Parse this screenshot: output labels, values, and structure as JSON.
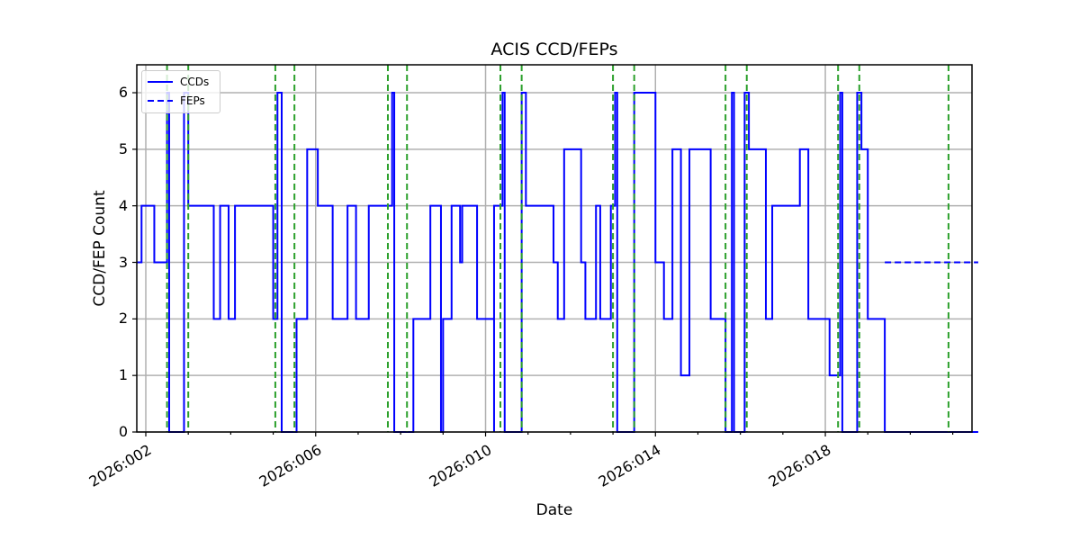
{
  "chart_data": {
    "type": "line",
    "title": "ACIS CCD/FEPs",
    "xlabel": "Date",
    "ylabel": "CCD/FEP Count",
    "ylim": [
      0,
      6.5
    ],
    "yticks": [
      "0",
      "1",
      "2",
      "3",
      "4",
      "5",
      "6"
    ],
    "xticks": [
      "2026:002",
      "2026:006",
      "2026:010",
      "2026:014",
      "2026:018"
    ],
    "xlim_days": [
      1.8,
      21.6
    ],
    "grid": true,
    "legend": {
      "position": "upper left",
      "entries": [
        "CCDs",
        "FEPs"
      ]
    },
    "series": [
      {
        "name": "CCDs",
        "style": "solid",
        "color": "#0000ff",
        "steps": [
          [
            1.8,
            3
          ],
          [
            1.9,
            4
          ],
          [
            2.2,
            3
          ],
          [
            2.5,
            6
          ],
          [
            2.55,
            0
          ],
          [
            2.9,
            6
          ],
          [
            3.0,
            4
          ],
          [
            3.6,
            2
          ],
          [
            3.75,
            4
          ],
          [
            3.95,
            2
          ],
          [
            4.1,
            4
          ],
          [
            5.0,
            2
          ],
          [
            5.1,
            6
          ],
          [
            5.2,
            0
          ],
          [
            5.55,
            2
          ],
          [
            5.8,
            5
          ],
          [
            6.05,
            4
          ],
          [
            6.4,
            2
          ],
          [
            6.75,
            4
          ],
          [
            6.95,
            2
          ],
          [
            7.25,
            4
          ],
          [
            7.8,
            6
          ],
          [
            7.85,
            0
          ],
          [
            8.3,
            2
          ],
          [
            8.7,
            4
          ],
          [
            8.95,
            0
          ],
          [
            9.0,
            2
          ],
          [
            9.2,
            4
          ],
          [
            9.4,
            3
          ],
          [
            9.45,
            4
          ],
          [
            9.8,
            2
          ],
          [
            10.2,
            0
          ],
          [
            10.2,
            4
          ],
          [
            10.4,
            6
          ],
          [
            10.45,
            0
          ],
          [
            10.85,
            6
          ],
          [
            10.95,
            4
          ],
          [
            11.6,
            3
          ],
          [
            11.7,
            2
          ],
          [
            11.85,
            5
          ],
          [
            12.25,
            3
          ],
          [
            12.35,
            2
          ],
          [
            12.6,
            4
          ],
          [
            12.7,
            2
          ],
          [
            12.95,
            4
          ],
          [
            13.05,
            6
          ],
          [
            13.1,
            0
          ],
          [
            13.5,
            6
          ],
          [
            14.0,
            3
          ],
          [
            14.2,
            2
          ],
          [
            14.4,
            5
          ],
          [
            14.6,
            1
          ],
          [
            14.8,
            5
          ],
          [
            15.3,
            2
          ],
          [
            15.65,
            0
          ],
          [
            15.8,
            6
          ],
          [
            15.85,
            0
          ],
          [
            16.1,
            6
          ],
          [
            16.2,
            5
          ],
          [
            16.6,
            2
          ],
          [
            16.75,
            4
          ],
          [
            17.4,
            5
          ],
          [
            17.6,
            2
          ],
          [
            18.1,
            1
          ],
          [
            18.35,
            6
          ],
          [
            18.4,
            0
          ],
          [
            18.75,
            6
          ],
          [
            18.85,
            5
          ],
          [
            19.0,
            2
          ],
          [
            19.4,
            0
          ],
          [
            21.6,
            0
          ]
        ]
      },
      {
        "name": "FEPs",
        "style": "dashed",
        "color": "#0000ff",
        "steps": [
          [
            19.4,
            3
          ],
          [
            21.6,
            3
          ]
        ]
      }
    ],
    "vlines": {
      "color": "#2ca02c",
      "style": "dashed",
      "x_days": [
        2.5,
        3.0,
        5.05,
        5.5,
        7.7,
        8.15,
        10.35,
        10.85,
        13.0,
        13.5,
        15.65,
        16.15,
        18.3,
        18.8,
        20.9
      ]
    }
  }
}
